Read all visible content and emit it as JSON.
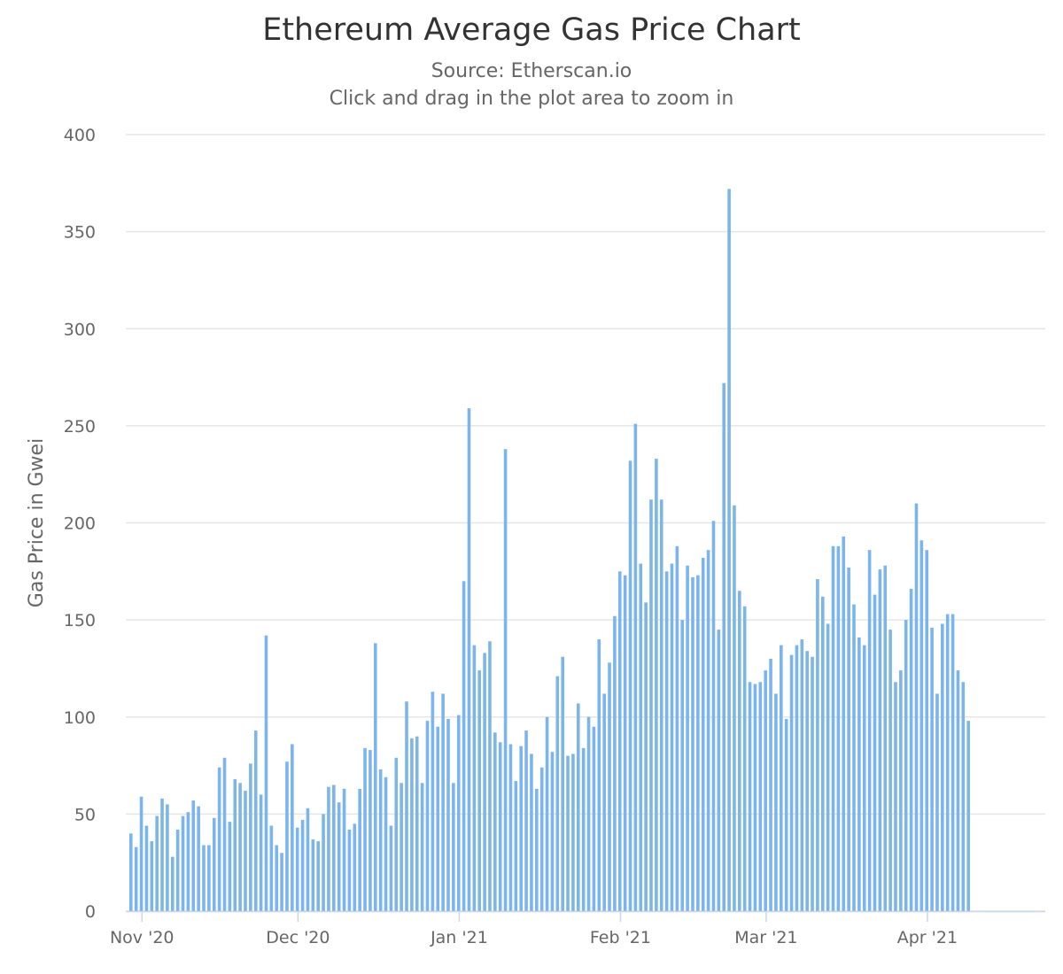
{
  "colors": {
    "bar": "#7cb5ec",
    "grid": "#e6e6e6",
    "axis": "#ccd6eb",
    "text": "#666666",
    "title": "#333333"
  },
  "chart_data": {
    "type": "bar",
    "title": "Ethereum Average Gas Price Chart",
    "subtitle_source": "Source: Etherscan.io",
    "subtitle_hint": "Click and drag in the plot area to zoom in",
    "xlabel": "",
    "ylabel": "Gas Price in Gwei",
    "ylim": [
      0,
      400
    ],
    "yticks": [
      0,
      50,
      100,
      150,
      200,
      250,
      300,
      350,
      400
    ],
    "grid": true,
    "legend": "none",
    "start_date": "2020-10-30",
    "x_tick_labels": [
      {
        "label": "Nov '20",
        "day_index": 2
      },
      {
        "label": "Dec '20",
        "day_index": 32
      },
      {
        "label": "Jan '21",
        "day_index": 63
      },
      {
        "label": "Feb '21",
        "day_index": 94
      },
      {
        "label": "Mar '21",
        "day_index": 122
      },
      {
        "label": "Apr '21",
        "day_index": 153
      }
    ],
    "series": [
      {
        "name": "Average Gas Price (Gwei)",
        "values": [
          40,
          33,
          59,
          44,
          36,
          49,
          58,
          55,
          28,
          42,
          49,
          51,
          57,
          54,
          34,
          34,
          48,
          74,
          79,
          46,
          68,
          66,
          62,
          76,
          93,
          60,
          142,
          44,
          34,
          30,
          77,
          86,
          43,
          47,
          53,
          37,
          36,
          50,
          64,
          65,
          56,
          63,
          42,
          45,
          63,
          84,
          83,
          138,
          73,
          69,
          44,
          79,
          66,
          108,
          89,
          90,
          66,
          98,
          113,
          95,
          112,
          99,
          66,
          101,
          170,
          259,
          137,
          124,
          133,
          139,
          92,
          87,
          238,
          86,
          67,
          85,
          93,
          81,
          63,
          74,
          100,
          82,
          121,
          131,
          80,
          81,
          107,
          84,
          100,
          95,
          140,
          112,
          128,
          152,
          175,
          173,
          232,
          251,
          179,
          159,
          212,
          233,
          212,
          175,
          179,
          188,
          150,
          178,
          172,
          173,
          182,
          186,
          201,
          145,
          272,
          372,
          209,
          165,
          157,
          118,
          117,
          118,
          124,
          130,
          112,
          137,
          99,
          132,
          137,
          140,
          134,
          131,
          171,
          162,
          148,
          188,
          188,
          193,
          177,
          158,
          141,
          137,
          186,
          163,
          176,
          178,
          145,
          118,
          124,
          150,
          166,
          210,
          191,
          186,
          146,
          112,
          148,
          153,
          153,
          124,
          118,
          98
        ]
      }
    ]
  }
}
